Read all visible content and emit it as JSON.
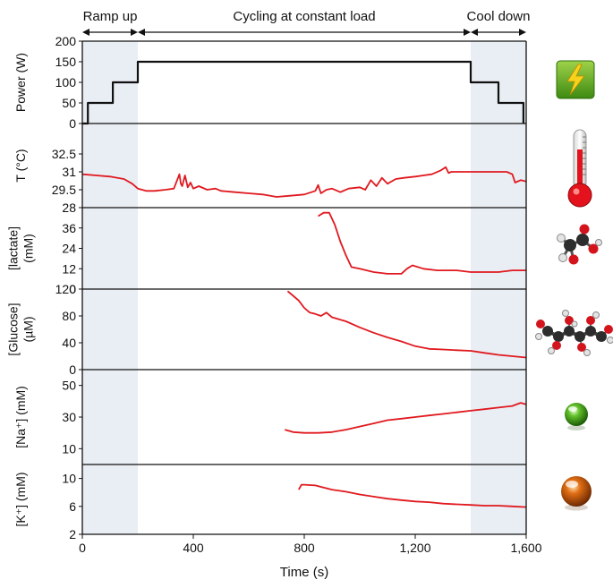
{
  "chart_data": {
    "type": "line",
    "xlabel": "Time (s)",
    "xlim": [
      0,
      1600
    ],
    "x_ticks": [
      {
        "v": 0,
        "label": "0"
      },
      {
        "v": 400,
        "label": "400"
      },
      {
        "v": 800,
        "label": "800"
      },
      {
        "v": 1200,
        "label": "1,200"
      },
      {
        "v": 1600,
        "label": "1,600"
      }
    ],
    "phases": [
      {
        "label": "Ramp up",
        "start": 0,
        "end": 200,
        "shaded": true
      },
      {
        "label": "Cycling at constant load",
        "start": 200,
        "end": 1400,
        "shaded": false
      },
      {
        "label": "Cool down",
        "start": 1400,
        "end": 1600,
        "shaded": true
      }
    ],
    "colors": {
      "power": "#111111",
      "signal": "#e0191f",
      "shade": "#e9eef4"
    },
    "panels": [
      {
        "id": "power",
        "ylabel": [
          "Power (W)"
        ],
        "ylim": [
          0,
          200
        ],
        "ytick_values": [
          0,
          50,
          100,
          150,
          200
        ],
        "ytick_labels": [
          "0",
          "50",
          "100",
          "150",
          "200"
        ],
        "icon": "lightning-icon",
        "series_color": "#111111",
        "x": [
          0,
          20,
          20,
          110,
          110,
          200,
          200,
          1400,
          1400,
          1500,
          1500,
          1590,
          1590
        ],
        "y": [
          0,
          0,
          50,
          50,
          100,
          100,
          150,
          150,
          100,
          100,
          50,
          50,
          0
        ]
      },
      {
        "id": "temperature",
        "ylabel": [
          "T (°C)"
        ],
        "ylim": [
          28,
          34
        ],
        "ytick_values": [
          28,
          29.5,
          31,
          32.5
        ],
        "ytick_labels": [
          "28",
          "29.5",
          "31",
          "32.5"
        ],
        "icon": "thermometer-icon",
        "series_color": "#e0191f",
        "x": [
          0,
          50,
          100,
          150,
          180,
          200,
          230,
          260,
          300,
          330,
          350,
          355,
          360,
          370,
          380,
          390,
          400,
          420,
          450,
          480,
          500,
          550,
          600,
          650,
          700,
          750,
          800,
          840,
          850,
          860,
          880,
          900,
          930,
          960,
          1000,
          1020,
          1040,
          1060,
          1080,
          1100,
          1130,
          1160,
          1200,
          1230,
          1260,
          1290,
          1310,
          1320,
          1330,
          1350,
          1400,
          1450,
          1500,
          1530,
          1550,
          1560,
          1580,
          1600
        ],
        "y": [
          30.8,
          30.7,
          30.6,
          30.4,
          30.0,
          29.6,
          29.4,
          29.4,
          29.5,
          29.6,
          30.8,
          30.0,
          29.8,
          30.7,
          29.7,
          30.1,
          29.6,
          29.8,
          29.5,
          29.6,
          29.4,
          29.3,
          29.2,
          29.1,
          28.9,
          29.0,
          29.1,
          29.4,
          29.9,
          29.2,
          29.5,
          29.6,
          29.3,
          29.6,
          29.7,
          29.5,
          30.3,
          29.8,
          30.5,
          30.0,
          30.4,
          30.5,
          30.6,
          30.7,
          30.8,
          31.1,
          31.4,
          30.9,
          31.0,
          31.0,
          31.0,
          31.0,
          31.0,
          31.0,
          30.8,
          30.1,
          30.3,
          30.2
        ]
      },
      {
        "id": "lactate",
        "ylabel": [
          "[lactate]",
          "(mM)"
        ],
        "ylim": [
          0,
          48
        ],
        "ytick_values": [
          0,
          12,
          24,
          36
        ],
        "ytick_labels": [
          "0",
          "12",
          "24",
          "36"
        ],
        "icon": "lactate-molecule-icon",
        "series_color": "#e0191f",
        "x": [
          850,
          870,
          890,
          910,
          930,
          950,
          970,
          1000,
          1050,
          1100,
          1150,
          1170,
          1190,
          1230,
          1280,
          1350,
          1400,
          1450,
          1500,
          1550,
          1600
        ],
        "y": [
          43,
          45,
          45,
          38,
          28,
          20,
          13,
          12,
          10,
          9,
          9,
          12,
          14,
          12,
          11,
          11,
          10,
          10,
          10,
          11,
          11
        ]
      },
      {
        "id": "glucose",
        "ylabel": [
          "[Glucose]",
          "(µM)"
        ],
        "ylim": [
          0,
          120
        ],
        "ytick_values": [
          0,
          40,
          80,
          120
        ],
        "ytick_labels": [
          "0",
          "40",
          "80",
          "120"
        ],
        "icon": "glucose-molecule-icon",
        "series_color": "#e0191f",
        "x": [
          740,
          760,
          780,
          800,
          820,
          840,
          860,
          880,
          900,
          950,
          1000,
          1050,
          1100,
          1150,
          1200,
          1250,
          1300,
          1350,
          1400,
          1450,
          1500,
          1550,
          1600
        ],
        "y": [
          117,
          110,
          103,
          92,
          85,
          83,
          80,
          85,
          78,
          72,
          63,
          55,
          48,
          42,
          35,
          31,
          30,
          29,
          28,
          25,
          22,
          20,
          18
        ]
      },
      {
        "id": "sodium",
        "ylabel": [
          "[Na⁺] (mM)"
        ],
        "ylim": [
          0,
          60
        ],
        "ytick_values": [
          10,
          30,
          50
        ],
        "ytick_labels": [
          "10",
          "30",
          "50"
        ],
        "icon": "green-sphere-icon",
        "series_color": "#e0191f",
        "x": [
          730,
          760,
          800,
          850,
          900,
          950,
          1000,
          1050,
          1100,
          1150,
          1200,
          1250,
          1300,
          1350,
          1400,
          1450,
          1500,
          1550,
          1580,
          1600
        ],
        "y": [
          22,
          20.5,
          20,
          20,
          20.5,
          22,
          24,
          26,
          28,
          29,
          30,
          31,
          32,
          33,
          34,
          35,
          36,
          37,
          39,
          38
        ]
      },
      {
        "id": "potassium",
        "ylabel": [
          "[K⁺] (mM)"
        ],
        "ylim": [
          2,
          12
        ],
        "ytick_values": [
          2,
          6,
          10
        ],
        "ytick_labels": [
          "2",
          "6",
          "10"
        ],
        "icon": "orange-sphere-icon",
        "series_color": "#e0191f",
        "x": [
          780,
          790,
          800,
          840,
          860,
          900,
          950,
          1000,
          1050,
          1100,
          1150,
          1200,
          1250,
          1300,
          1350,
          1400,
          1450,
          1500,
          1550,
          1600
        ],
        "y": [
          8.4,
          9.1,
          9.1,
          9.0,
          8.8,
          8.4,
          8.1,
          7.7,
          7.4,
          7.1,
          6.9,
          6.7,
          6.6,
          6.4,
          6.3,
          6.2,
          6.1,
          6.1,
          6.0,
          5.9
        ]
      }
    ]
  }
}
